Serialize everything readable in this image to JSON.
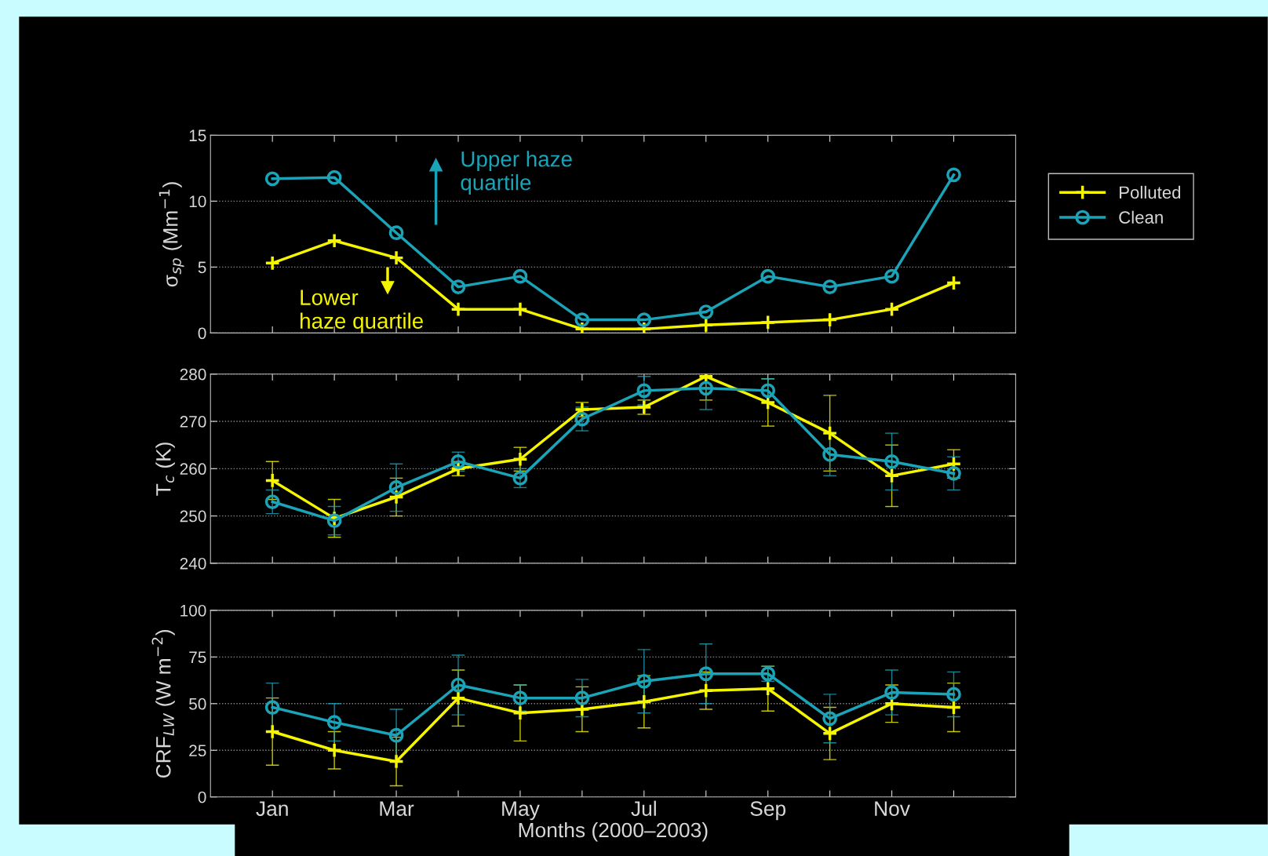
{
  "chart_data": [
    {
      "type": "line",
      "ylabel": "σ$_{sp}$ (Mm$^{−1}$)",
      "categories": [
        null,
        null,
        null,
        null,
        null,
        null,
        null,
        null,
        null,
        null,
        null,
        null
      ],
      "ylim": [
        0,
        15
      ],
      "yticks": [
        0,
        5,
        10,
        15
      ],
      "grid": "y",
      "legend": "right",
      "series": [
        {
          "name": "Polluted",
          "color": "#f5f500",
          "marker": "cross",
          "values": [
            5.3,
            7.0,
            5.7,
            1.8,
            1.8,
            0.3,
            0.3,
            0.6,
            0.8,
            1.0,
            1.8,
            3.8
          ]
        },
        {
          "name": "Clean",
          "color": "#1ba3b8",
          "marker": "circle",
          "values": [
            11.7,
            11.8,
            7.6,
            3.5,
            4.3,
            1.0,
            1.0,
            1.6,
            4.3,
            3.5,
            4.3,
            12.0
          ]
        }
      ],
      "annotations": [
        "Upper haze\nquartile",
        "Lower\nhaze quartile"
      ]
    },
    {
      "type": "line",
      "ylabel": "T$_{c}$ (K)",
      "categories": [
        null,
        null,
        null,
        null,
        null,
        null,
        null,
        null,
        null,
        null,
        null,
        null
      ],
      "ylim": [
        240,
        280
      ],
      "yticks": [
        240,
        250,
        260,
        270,
        280
      ],
      "grid": "y",
      "series": [
        {
          "color": "#f5f500",
          "marker": "cross",
          "values": [
            257.5,
            249.5,
            254,
            260,
            262,
            272.5,
            273,
            279.5,
            274,
            267.5,
            258.5,
            261
          ],
          "errors": [
            4,
            4,
            4,
            1.5,
            2.5,
            1.5,
            1.5,
            5,
            5,
            8,
            6.5,
            3
          ]
        },
        {
          "color": "#1ba3b8",
          "marker": "circle",
          "values": [
            253,
            249,
            256,
            261.5,
            258,
            270.5,
            276.5,
            277,
            276.5,
            263,
            261.5,
            259
          ],
          "errors": [
            2.5,
            3,
            5,
            2,
            2,
            2.5,
            3,
            4.5,
            2.5,
            4.5,
            6,
            3.5
          ]
        }
      ]
    },
    {
      "type": "line",
      "ylabel": "CRF$_{LW}$ (W m$^{−2}$)",
      "xlabel": "Months (2000–2003)",
      "categories": [
        "Jan",
        null,
        "Mar",
        null,
        "May",
        null,
        "Jul",
        null,
        "Sep",
        null,
        "Nov",
        null
      ],
      "ylim": [
        0,
        100
      ],
      "yticks": [
        0,
        25,
        50,
        75,
        100
      ],
      "grid": "y",
      "series": [
        {
          "color": "#f5f500",
          "marker": "cross",
          "values": [
            35,
            25,
            19,
            53,
            45,
            47,
            51,
            57,
            58,
            34,
            50,
            48
          ],
          "errors": [
            18,
            10,
            13,
            15,
            15,
            12,
            14,
            10,
            12,
            14,
            10,
            13
          ]
        },
        {
          "color": "#1ba3b8",
          "marker": "circle",
          "values": [
            48,
            40,
            33,
            60,
            53,
            53,
            62,
            66,
            66,
            42,
            56,
            55
          ],
          "errors": [
            13,
            10,
            14,
            16,
            7,
            10,
            17,
            16,
            4,
            13,
            12,
            12
          ]
        }
      ]
    }
  ]
}
